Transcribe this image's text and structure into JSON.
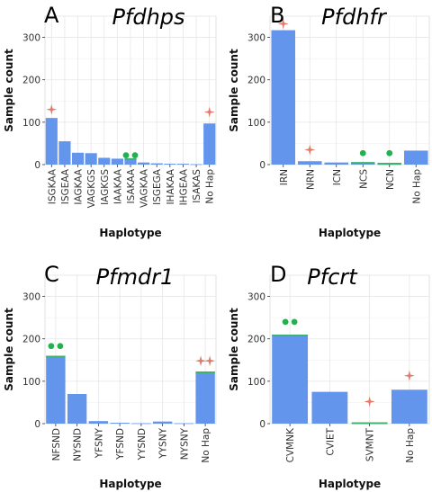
{
  "colors": {
    "bar": "#6495ED",
    "line": "#3CB371",
    "dot": "#22B14C",
    "star": "#E07B6B",
    "grid": "#E6E6E6"
  },
  "chart_data": [
    {
      "type": "bar",
      "panel": "A",
      "title": "Pfdhps",
      "xlabel": "Haplotype",
      "ylabel": "Sample count",
      "ylim": [
        0,
        350
      ],
      "yticks": [
        0,
        100,
        200,
        300
      ],
      "categories": [
        "ISGKAA",
        "ISGEAA",
        "IAGKAA",
        "VAGKGS",
        "IAGKGS",
        "IAAKAA",
        "ISAKAA",
        "VAGKAA",
        "ISGEGA",
        "IHAKAA",
        "IHGEAA",
        "ISAKAS",
        "No Hap"
      ],
      "values": [
        110,
        55,
        28,
        27,
        16,
        14,
        12,
        5,
        3,
        2,
        2,
        1,
        97
      ],
      "marked_line": [
        null,
        null,
        null,
        null,
        null,
        null,
        13,
        null,
        null,
        null,
        null,
        null,
        null
      ],
      "markers": [
        {
          "category": "ISGKAA",
          "symbol": "star",
          "count": 1,
          "y": 130
        },
        {
          "category": "ISAKAA",
          "symbol": "dot",
          "count": 2,
          "y": 22
        },
        {
          "category": "No Hap",
          "symbol": "star",
          "count": 1,
          "y": 124
        }
      ]
    },
    {
      "type": "bar",
      "panel": "B",
      "title": "Pfdhfr",
      "xlabel": "Haplotype",
      "ylabel": "Sample count",
      "ylim": [
        0,
        350
      ],
      "yticks": [
        0,
        100,
        200,
        300
      ],
      "categories": [
        "IRN",
        "NRN",
        "ICN",
        "NCS",
        "NCN",
        "No Hap"
      ],
      "values": [
        317,
        8,
        5,
        3,
        1,
        33
      ],
      "marked_line": [
        null,
        null,
        null,
        4,
        2,
        null
      ],
      "markers": [
        {
          "category": "IRN",
          "symbol": "star",
          "count": 1,
          "y": 332
        },
        {
          "category": "NRN",
          "symbol": "star",
          "count": 1,
          "y": 35
        },
        {
          "category": "NCS",
          "symbol": "dot",
          "count": 1,
          "y": 27
        },
        {
          "category": "NCN",
          "symbol": "dot",
          "count": 1,
          "y": 27
        }
      ]
    },
    {
      "type": "bar",
      "panel": "C",
      "title": "Pfmdr1",
      "xlabel": "Haplotype",
      "ylabel": "Sample count",
      "ylim": [
        0,
        350
      ],
      "yticks": [
        0,
        100,
        200,
        300
      ],
      "categories": [
        "NFSND",
        "NYSND",
        "YFSNY",
        "YFSND",
        "YYSND",
        "YYSNY",
        "NYSNY",
        "No Hap"
      ],
      "values": [
        160,
        70,
        6,
        2,
        1,
        5,
        1,
        123
      ],
      "marked_line": [
        158,
        null,
        null,
        null,
        null,
        null,
        null,
        121
      ],
      "markers": [
        {
          "category": "NFSND",
          "symbol": "dot",
          "count": 2,
          "y": 183
        },
        {
          "category": "No Hap",
          "symbol": "star",
          "count": 2,
          "y": 148
        }
      ]
    },
    {
      "type": "bar",
      "panel": "D",
      "title": "Pfcrt",
      "xlabel": "Haplotype",
      "ylabel": "Sample count",
      "ylim": [
        0,
        350
      ],
      "yticks": [
        0,
        100,
        200,
        300
      ],
      "categories": [
        "CVMNK",
        "CVIET",
        "SVMNT",
        "No Hap"
      ],
      "values": [
        210,
        75,
        1,
        80
      ],
      "marked_line": [
        208,
        null,
        1,
        null
      ],
      "markers": [
        {
          "category": "CVMNK",
          "symbol": "dot",
          "count": 2,
          "y": 240
        },
        {
          "category": "SVMNT",
          "symbol": "star",
          "count": 1,
          "y": 52
        },
        {
          "category": "No Hap",
          "symbol": "star",
          "count": 1,
          "y": 113
        }
      ]
    }
  ]
}
